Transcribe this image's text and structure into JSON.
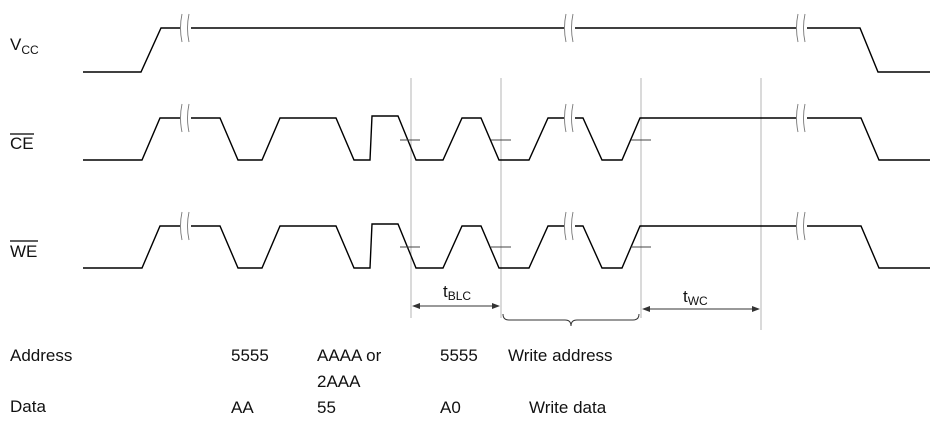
{
  "signals": {
    "vcc": {
      "main": "V",
      "sub": "CC"
    },
    "ce": {
      "main": "CE",
      "overbar": true
    },
    "we": {
      "main": "WE",
      "overbar": true
    }
  },
  "timing": {
    "tblc": {
      "main": "t",
      "sub": "BLC"
    },
    "twc": {
      "main": "t",
      "sub": "WC"
    }
  },
  "rows": {
    "address": {
      "label": "Address",
      "values": [
        "5555",
        "AAAA or",
        "2AAA",
        "5555",
        "Write address"
      ]
    },
    "data": {
      "label": "Data",
      "values": [
        "AA",
        "55",
        "A0",
        "Write data"
      ]
    }
  }
}
